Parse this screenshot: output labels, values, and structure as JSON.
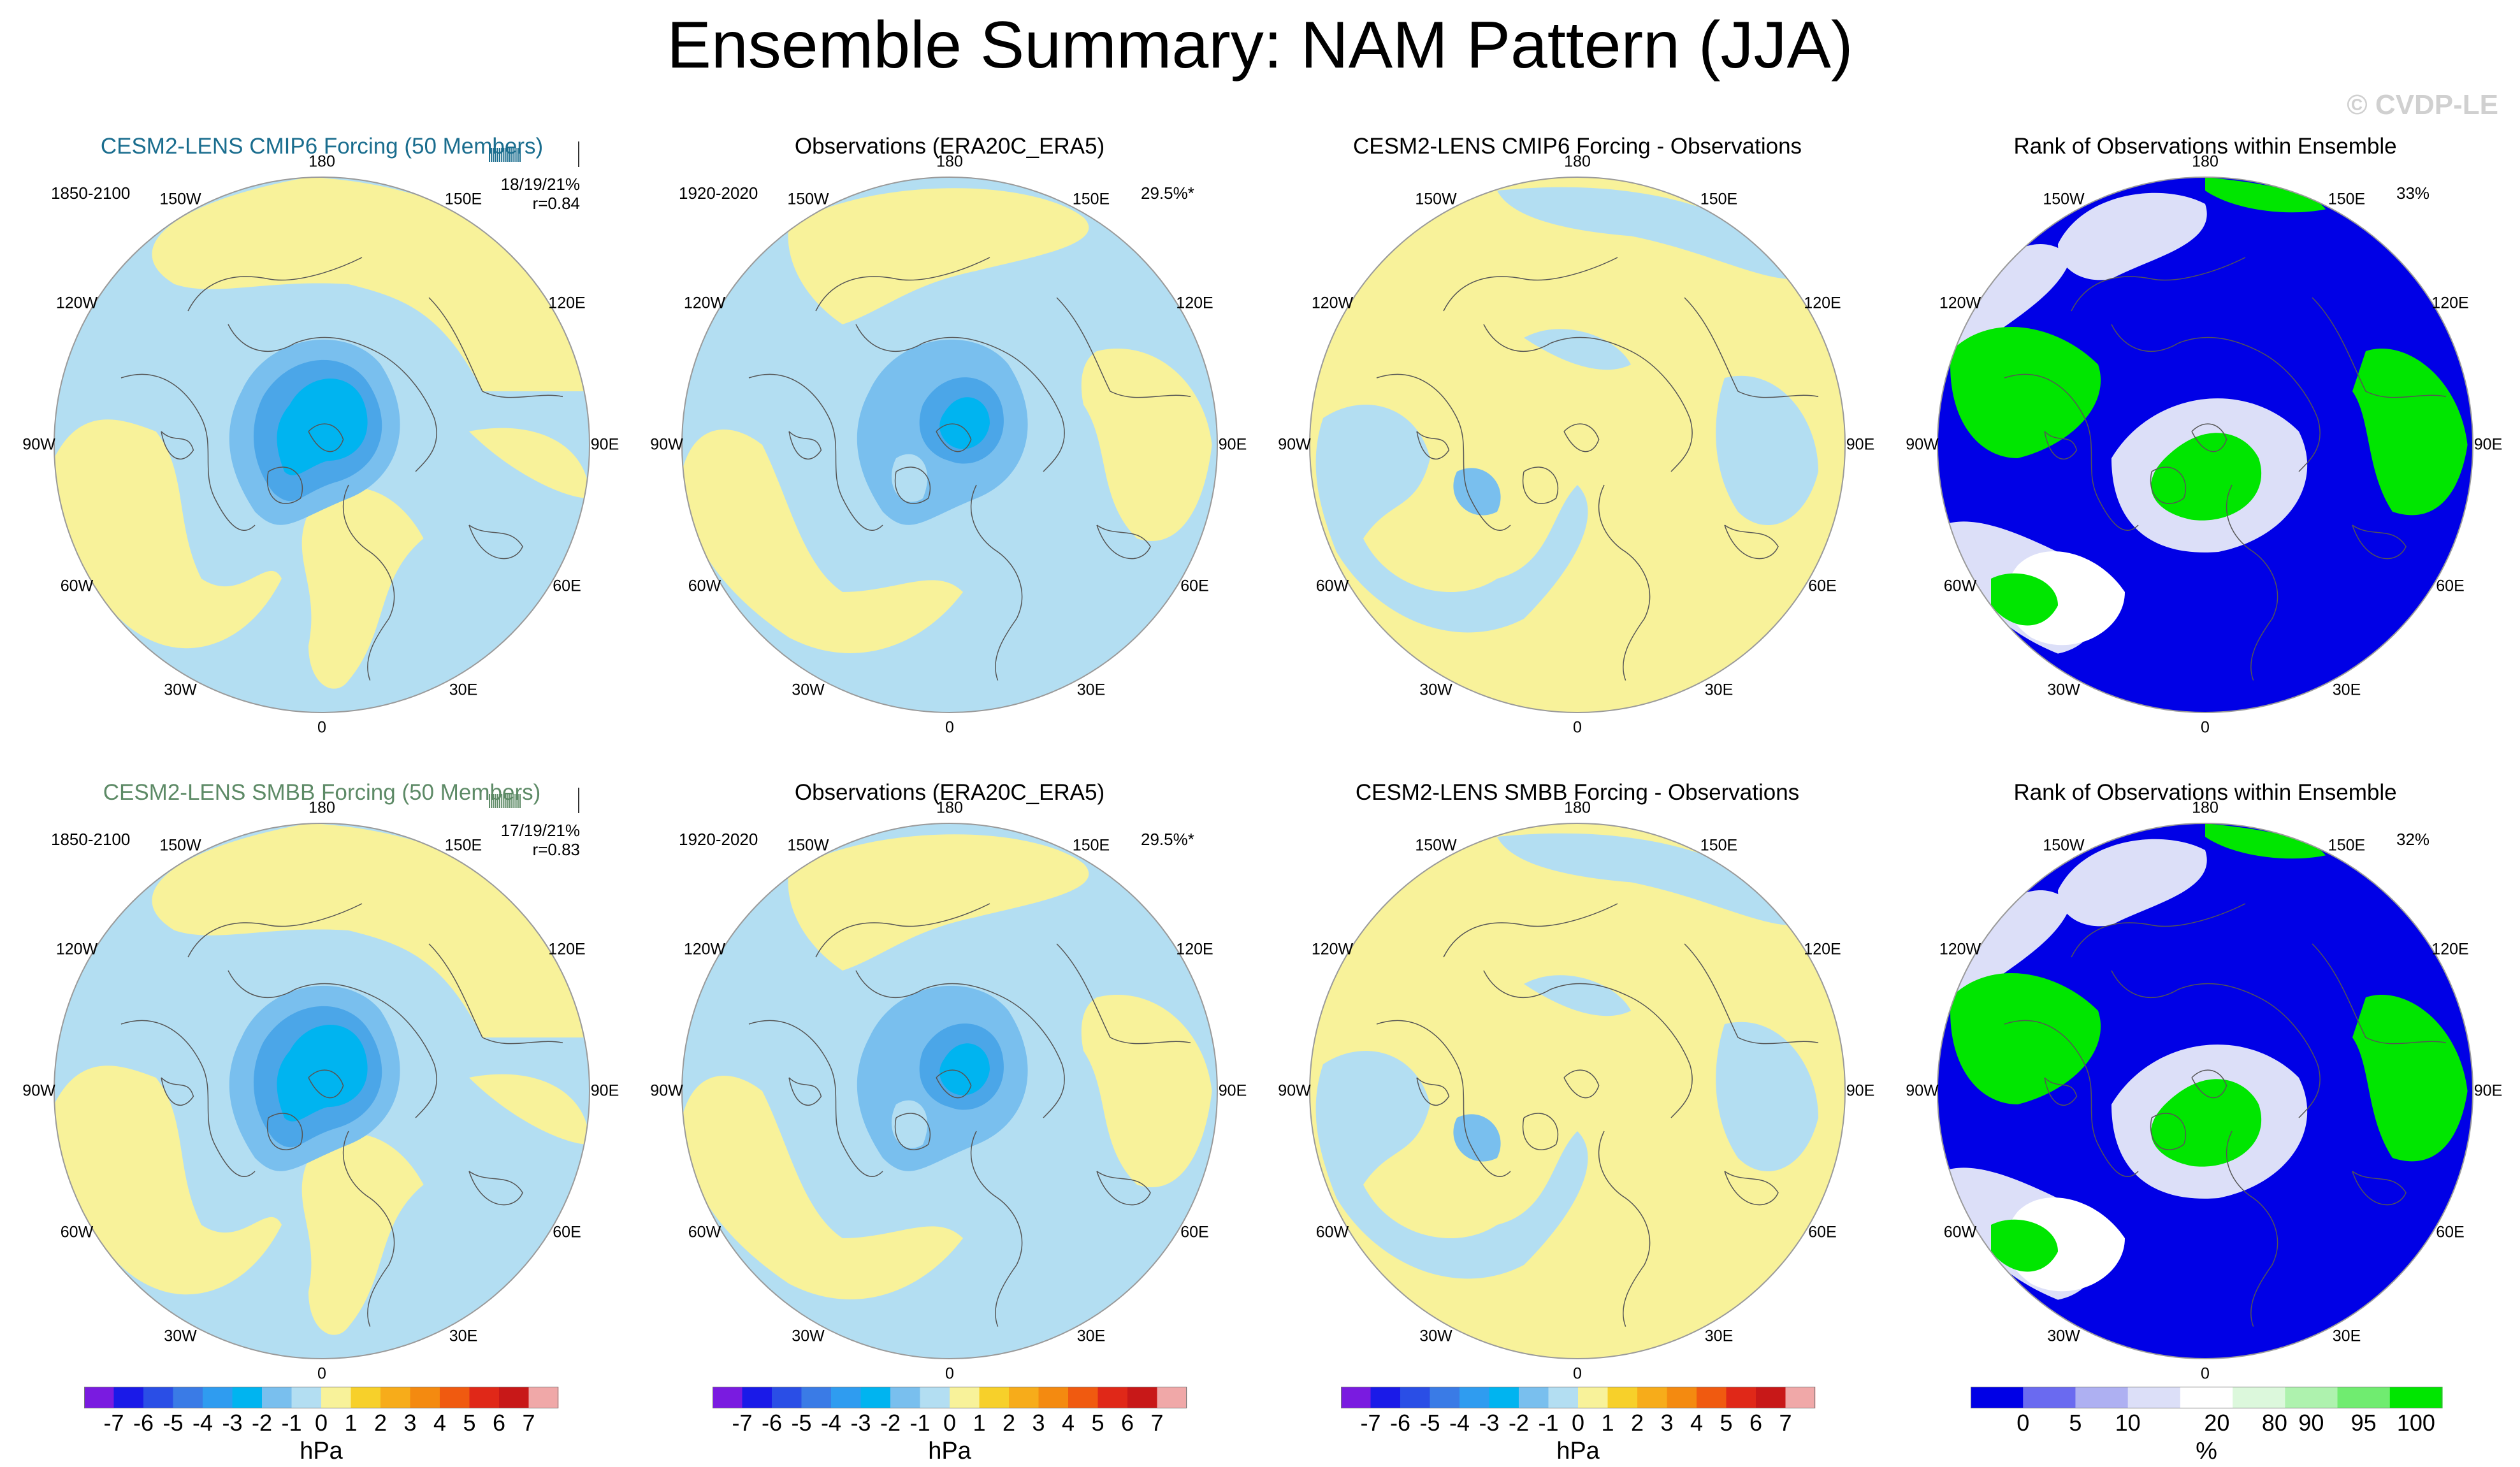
{
  "title": "Ensemble Summary: NAM Pattern (JJA)",
  "watermark": "© CVDP-LE",
  "colors": {
    "ocean_blue": "#b3def2",
    "yellow": "#f8f29a",
    "blue_mid": "#79bfee",
    "blue_dark": "#4ba6e8",
    "cyan": "#00b4f0",
    "rank_blue": "#0000e6",
    "rank_light": "#dcdff8",
    "rank_green": "#00e600",
    "cesm_cmip6_title": "#1a6d8e",
    "cesm_smbb_title": "#5d8a66"
  },
  "lon_labels": [
    "180",
    "150E",
    "120E",
    "90E",
    "60E",
    "30E",
    "0",
    "30W",
    "60W",
    "90W",
    "120W",
    "150W"
  ],
  "row1": {
    "p1": {
      "title": "CESM2-LENS CMIP6 Forcing (50 Members)",
      "period": "1850-2100",
      "stats_line1": "18/19/21%",
      "stats_line2": "r=0.84"
    },
    "p2": {
      "title": "Observations (ERA20C_ERA5)",
      "period": "1920-2020",
      "pct": "29.5%*"
    },
    "p3": {
      "title": "CESM2-LENS CMIP6 Forcing - Observations"
    },
    "p4": {
      "title": "Rank of Observations within Ensemble",
      "pct": "33%"
    }
  },
  "row2": {
    "p1": {
      "title": "CESM2-LENS SMBB Forcing (50 Members)",
      "period": "1850-2100",
      "stats_line1": "17/19/21%",
      "stats_line2": "r=0.83"
    },
    "p2": {
      "title": "Observations (ERA20C_ERA5)",
      "period": "1920-2020",
      "pct": "29.5%*"
    },
    "p3": {
      "title": "CESM2-LENS SMBB Forcing - Observations"
    },
    "p4": {
      "title": "Rank of Observations within Ensemble",
      "pct": "32%"
    }
  },
  "chart_data": [
    {
      "type": "colorbar",
      "name": "hPa scale",
      "ticks": [
        "-7",
        "-6",
        "-5",
        "-4",
        "-3",
        "-2",
        "-1",
        "0",
        "1",
        "2",
        "3",
        "4",
        "5",
        "6",
        "7"
      ],
      "unit": "hPa",
      "colors": [
        "#7a1be0",
        "#1a1ae8",
        "#2a4ee6",
        "#3a7be6",
        "#2f9cf0",
        "#00b4f0",
        "#79bfee",
        "#b3def2",
        "#f8f29a",
        "#f7d02a",
        "#f7ac1a",
        "#f48a10",
        "#f05a10",
        "#e02818",
        "#c81818",
        "#f0a8a8"
      ]
    },
    {
      "type": "colorbar",
      "name": "rank percent scale",
      "ticks": [
        "0",
        "5",
        "10",
        "20",
        "80",
        "90",
        "95",
        "100"
      ],
      "unit": "%",
      "colors": [
        "#0000e6",
        "#6a6af0",
        "#aeb0f2",
        "#dcdff8",
        "#ffffff",
        "#dcf8dc",
        "#aef2ae",
        "#70ec70",
        "#00e600"
      ]
    }
  ]
}
